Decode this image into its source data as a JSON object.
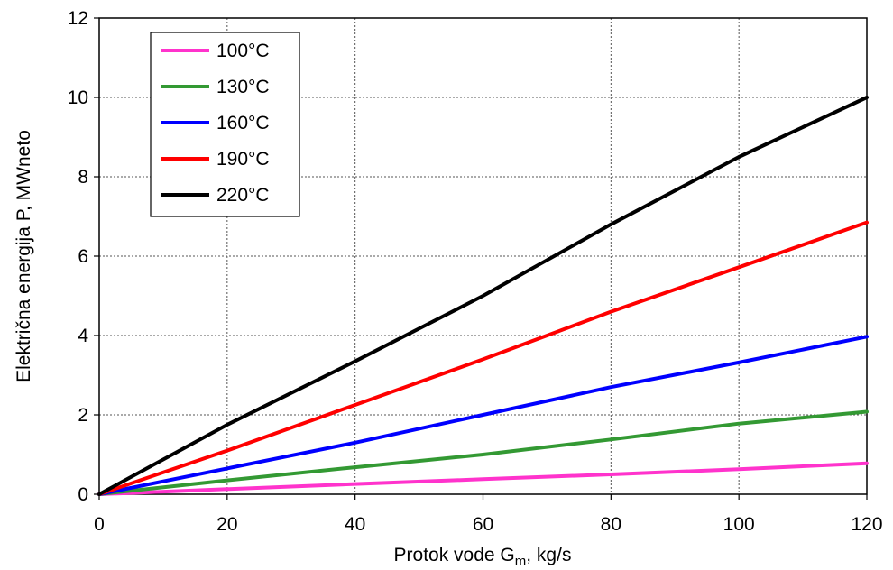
{
  "chart_data": {
    "type": "line",
    "title": "",
    "xlabel_main": "Protok vode G",
    "xlabel_sub": "m",
    "xlabel_tail": ", kg/s",
    "ylabel": "Električna energija P, MWneto",
    "xlim": [
      0,
      120
    ],
    "ylim": [
      0,
      12
    ],
    "xticks": [
      "0",
      "20",
      "40",
      "60",
      "80",
      "100",
      "120"
    ],
    "yticks": [
      "0",
      "2",
      "4",
      "6",
      "8",
      "10",
      "12"
    ],
    "grid": true,
    "legend_position": "top-left",
    "series": [
      {
        "name": "100°C",
        "color": "#ff33cc",
        "x": [
          0,
          20,
          40,
          60,
          80,
          100,
          120
        ],
        "y": [
          0,
          0.13,
          0.26,
          0.38,
          0.5,
          0.63,
          0.78
        ]
      },
      {
        "name": "130°C",
        "color": "#339933",
        "x": [
          0,
          20,
          40,
          60,
          80,
          100,
          120
        ],
        "y": [
          0,
          0.35,
          0.68,
          1.0,
          1.38,
          1.78,
          2.08
        ]
      },
      {
        "name": "160°C",
        "color": "#0000ff",
        "x": [
          0,
          20,
          40,
          60,
          80,
          100,
          120
        ],
        "y": [
          0,
          0.65,
          1.3,
          2.0,
          2.7,
          3.32,
          3.97
        ]
      },
      {
        "name": "190°C",
        "color": "#ff0000",
        "x": [
          0,
          20,
          40,
          60,
          80,
          100,
          120
        ],
        "y": [
          0,
          1.1,
          2.25,
          3.4,
          4.6,
          5.72,
          6.85
        ]
      },
      {
        "name": "220°C",
        "color": "#000000",
        "x": [
          0,
          20,
          40,
          60,
          80,
          100,
          120
        ],
        "y": [
          0,
          1.75,
          3.35,
          5.0,
          6.8,
          8.5,
          10.0
        ]
      }
    ]
  }
}
